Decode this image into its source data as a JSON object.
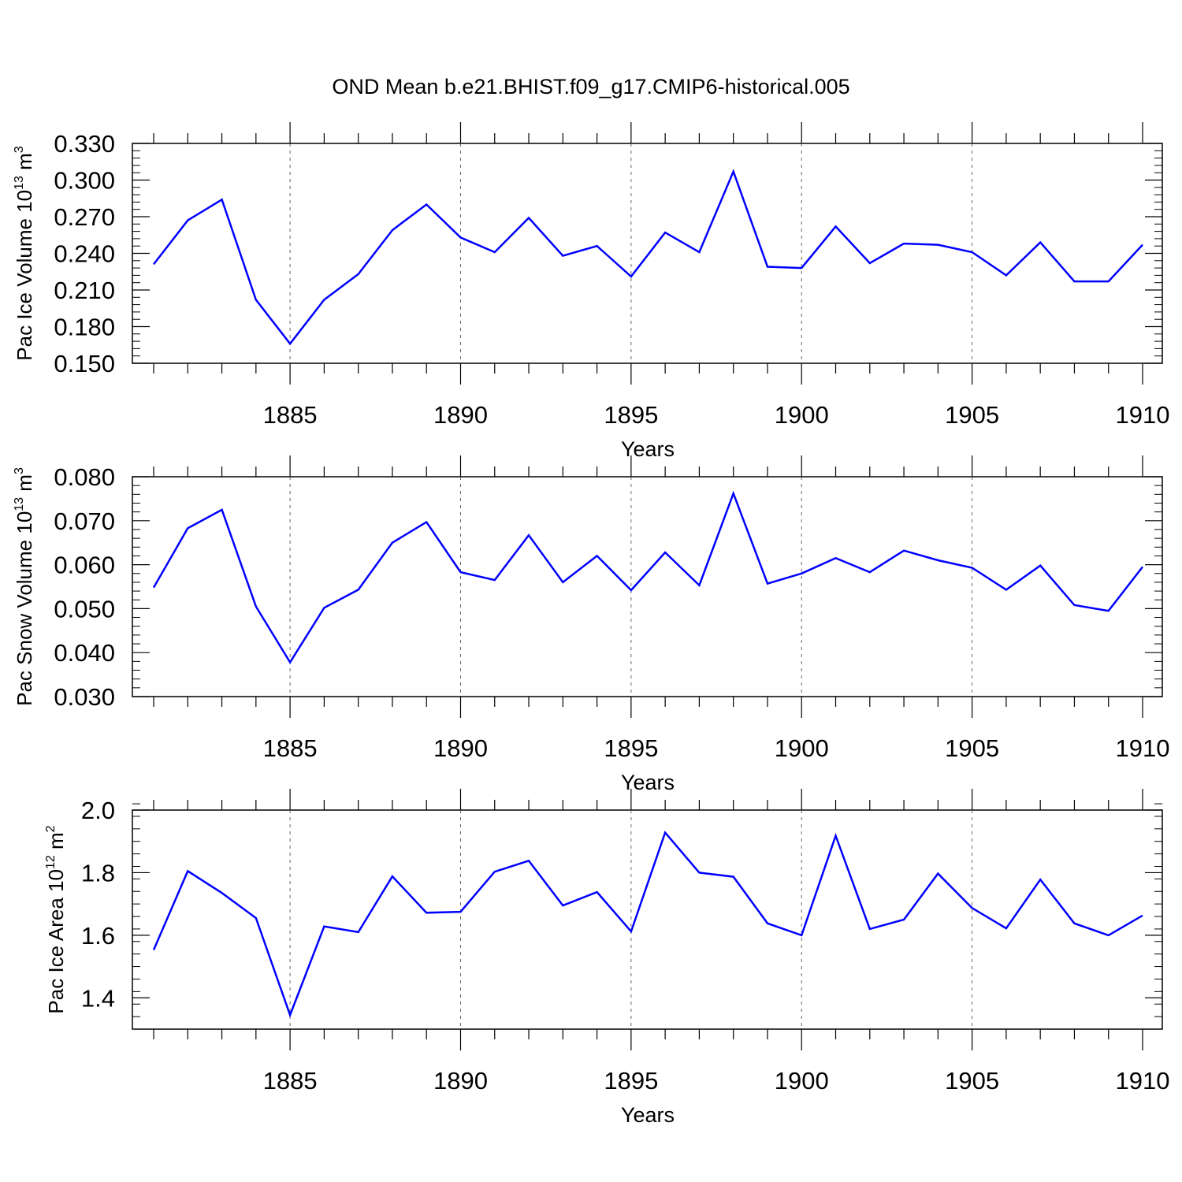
{
  "figure": {
    "title": "OND Mean b.e21.BHIST.f09_g17.CMIP6-historical.005",
    "line_color": "#0000ff",
    "grid_color": "#666666"
  },
  "chart_data": [
    {
      "type": "line",
      "title": "OND Mean b.e21.BHIST.f09_g17.CMIP6-historical.005",
      "xlabel": "Years",
      "ylabel": "Pac Ice Volume 10",
      "ylabel_exp": "13",
      "ylabel_unit": " m",
      "ylabel_unit_exp": "3",
      "xlim": [
        1881,
        1910
      ],
      "ylim": [
        0.15,
        0.33
      ],
      "xticks": [
        1885,
        1890,
        1895,
        1900,
        1905,
        1910
      ],
      "xtick_labels": [
        "1885",
        "1890",
        "1895",
        "1900",
        "1905",
        "1910"
      ],
      "yticks": [
        0.15,
        0.18,
        0.21,
        0.24,
        0.27,
        0.3,
        0.33
      ],
      "ytick_labels": [
        "0.150",
        "0.180",
        "0.210",
        "0.240",
        "0.270",
        "0.300",
        "0.330"
      ],
      "yminor_step": 0.006,
      "grid": "vertical dashed at major x ticks",
      "x": [
        1881,
        1882,
        1883,
        1884,
        1885,
        1886,
        1887,
        1888,
        1889,
        1890,
        1891,
        1892,
        1893,
        1894,
        1895,
        1896,
        1897,
        1898,
        1899,
        1900,
        1901,
        1902,
        1903,
        1904,
        1905,
        1906,
        1907,
        1908,
        1909,
        1910
      ],
      "series": [
        {
          "name": "Pac Ice Volume",
          "values": [
            0.231,
            0.267,
            0.284,
            0.202,
            0.166,
            0.202,
            0.223,
            0.259,
            0.28,
            0.253,
            0.241,
            0.269,
            0.238,
            0.246,
            0.221,
            0.257,
            0.241,
            0.307,
            0.229,
            0.228,
            0.262,
            0.232,
            0.248,
            0.247,
            0.241,
            0.222,
            0.249,
            0.217,
            0.217,
            0.247
          ]
        }
      ]
    },
    {
      "type": "line",
      "xlabel": "Years",
      "ylabel": "Pac Snow Volume 10",
      "ylabel_exp": "13",
      "ylabel_unit": " m",
      "ylabel_unit_exp": "3",
      "xlim": [
        1881,
        1910
      ],
      "ylim": [
        0.03,
        0.08
      ],
      "xticks": [
        1885,
        1890,
        1895,
        1900,
        1905,
        1910
      ],
      "xtick_labels": [
        "1885",
        "1890",
        "1895",
        "1900",
        "1905",
        "1910"
      ],
      "yticks": [
        0.03,
        0.04,
        0.05,
        0.06,
        0.07,
        0.08
      ],
      "ytick_labels": [
        "0.030",
        "0.040",
        "0.050",
        "0.060",
        "0.070",
        "0.080"
      ],
      "yminor_step": 0.002,
      "grid": "vertical dashed at major x ticks",
      "x": [
        1881,
        1882,
        1883,
        1884,
        1885,
        1886,
        1887,
        1888,
        1889,
        1890,
        1891,
        1892,
        1893,
        1894,
        1895,
        1896,
        1897,
        1898,
        1899,
        1900,
        1901,
        1902,
        1903,
        1904,
        1905,
        1906,
        1907,
        1908,
        1909,
        1910
      ],
      "series": [
        {
          "name": "Pac Snow Volume",
          "values": [
            0.0548,
            0.0683,
            0.0725,
            0.0505,
            0.0378,
            0.0502,
            0.0543,
            0.065,
            0.0697,
            0.0583,
            0.0565,
            0.0667,
            0.056,
            0.062,
            0.0542,
            0.0628,
            0.0553,
            0.0762,
            0.0557,
            0.058,
            0.0615,
            0.0583,
            0.0632,
            0.061,
            0.0593,
            0.0543,
            0.0598,
            0.0508,
            0.0495,
            0.0595
          ]
        }
      ]
    },
    {
      "type": "line",
      "xlabel": "Years",
      "ylabel": "Pac Ice Area 10",
      "ylabel_exp": "12",
      "ylabel_unit": " m",
      "ylabel_unit_exp": "2",
      "xlim": [
        1881,
        1910
      ],
      "ylim": [
        1.3,
        2.0
      ],
      "xticks": [
        1885,
        1890,
        1895,
        1900,
        1905,
        1910
      ],
      "xtick_labels": [
        "1885",
        "1890",
        "1895",
        "1900",
        "1905",
        "1910"
      ],
      "yticks": [
        1.4,
        1.6,
        1.8,
        2.0
      ],
      "ytick_labels": [
        "1.4",
        "1.6",
        "1.8",
        "2.0"
      ],
      "yminor_step": 0.04,
      "grid": "vertical dashed at major x ticks",
      "x": [
        1881,
        1882,
        1883,
        1884,
        1885,
        1886,
        1887,
        1888,
        1889,
        1890,
        1891,
        1892,
        1893,
        1894,
        1895,
        1896,
        1897,
        1898,
        1899,
        1900,
        1901,
        1902,
        1903,
        1904,
        1905,
        1906,
        1907,
        1908,
        1909,
        1910
      ],
      "series": [
        {
          "name": "Pac Ice Area",
          "values": [
            1.553,
            1.805,
            1.735,
            1.655,
            1.345,
            1.628,
            1.61,
            1.788,
            1.672,
            1.675,
            1.803,
            1.838,
            1.695,
            1.738,
            1.612,
            1.928,
            1.8,
            1.787,
            1.638,
            1.6,
            1.918,
            1.62,
            1.65,
            1.797,
            1.687,
            1.622,
            1.778,
            1.638,
            1.6,
            1.663
          ]
        }
      ]
    }
  ]
}
